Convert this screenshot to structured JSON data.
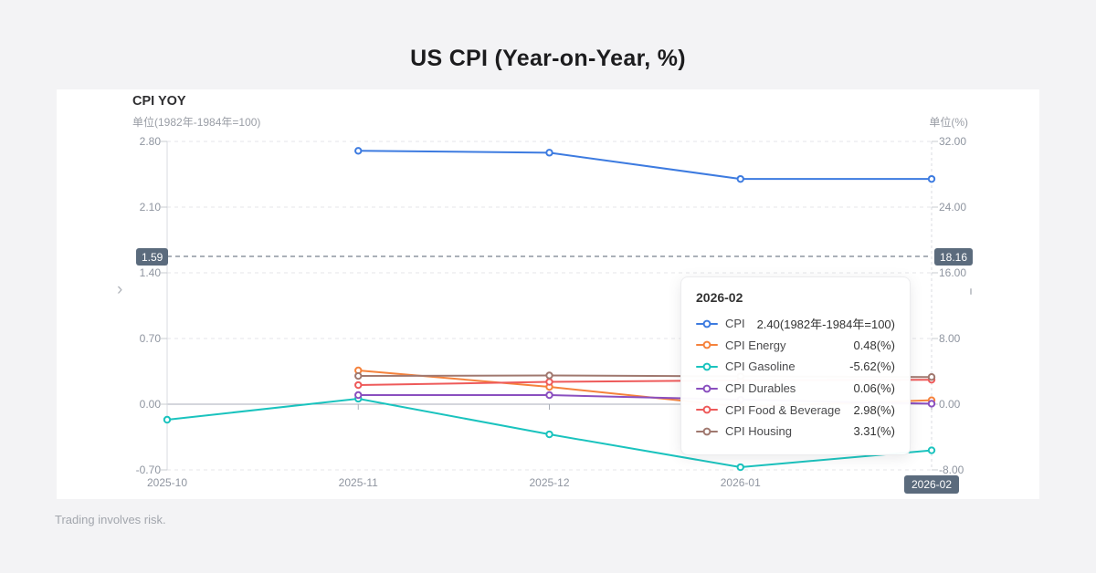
{
  "page": {
    "title": "US CPI (Year-on-Year, %)",
    "disclaimer": "Trading involves risk."
  },
  "panel": {
    "title": "CPI YOY",
    "left_axis_unit": "单位(1982年-1984年=100)",
    "right_axis_unit": "单位(%)"
  },
  "chart_data": {
    "type": "line",
    "title": "CPI YOY",
    "x": [
      "2025-10",
      "2025-11",
      "2025-12",
      "2026-01",
      "2026-02"
    ],
    "x_highlight": "2026-02",
    "left_axis": {
      "ticks": [
        "2.80",
        "2.10",
        "1.40",
        "0.70",
        "0.00",
        "-0.70"
      ],
      "max": 2.8,
      "min": -0.7,
      "unit": "单位(1982年-1984年=100)"
    },
    "right_axis": {
      "ticks": [
        "32.00",
        "24.00",
        "16.00",
        "8.00",
        "0.00",
        "-8.00"
      ],
      "max": 32,
      "min": -8,
      "unit": "单位(%)"
    },
    "grid": "dashed-horizontal",
    "legend_position": "tooltip-only",
    "crosshair": {
      "left_value": "1.59",
      "right_value": "18.16"
    },
    "series": [
      {
        "name": "CPI",
        "axis": "left",
        "color": "#3d7be0",
        "values": [
          null,
          2.7,
          2.68,
          2.4,
          2.4
        ]
      },
      {
        "name": "CPI Energy",
        "axis": "right",
        "color": "#f5823c",
        "values": [
          null,
          4.11,
          2.11,
          -0.3,
          0.48
        ]
      },
      {
        "name": "CPI Gasoline",
        "axis": "right",
        "color": "#1ac3be",
        "values": [
          -1.89,
          0.67,
          -3.67,
          -7.67,
          -5.62
        ]
      },
      {
        "name": "CPI Durables",
        "axis": "right",
        "color": "#8a4fbf",
        "values": [
          null,
          1.11,
          1.11,
          0.55,
          0.06
        ]
      },
      {
        "name": "CPI Food & Beverage",
        "axis": "right",
        "color": "#ee5a5a",
        "values": [
          null,
          2.33,
          2.72,
          2.9,
          2.98
        ]
      },
      {
        "name": "CPI Housing",
        "axis": "right",
        "color": "#a0786f",
        "values": [
          null,
          3.44,
          3.5,
          3.4,
          3.31
        ]
      }
    ]
  },
  "tooltip": {
    "header": "2026-02",
    "rows": [
      {
        "name": "CPI",
        "value": "2.40(1982年-1984年=100)",
        "color": "#3d7be0"
      },
      {
        "name": "CPI Energy",
        "value": "0.48(%)",
        "color": "#f5823c"
      },
      {
        "name": "CPI Gasoline",
        "value": "-5.62(%)",
        "color": "#1ac3be"
      },
      {
        "name": "CPI Durables",
        "value": "0.06(%)",
        "color": "#8a4fbf"
      },
      {
        "name": "CPI Food & Beverage",
        "value": "2.98(%)",
        "color": "#ee5a5a"
      },
      {
        "name": "CPI Housing",
        "value": "3.31(%)",
        "color": "#a0786f"
      }
    ]
  }
}
